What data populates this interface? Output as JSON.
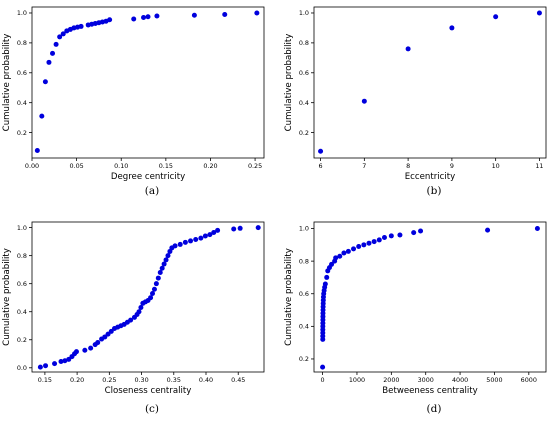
{
  "point_color": "#0000dd",
  "chart_data": [
    {
      "type": "scatter",
      "caption": "(a)",
      "xlabel": "Degree centricity",
      "ylabel": "Cumulative probability",
      "xlim": [
        0,
        0.26
      ],
      "ylim": [
        0.03,
        1.04
      ],
      "xticks": [
        0.0,
        0.05,
        0.1,
        0.15,
        0.2,
        0.25
      ],
      "xtick_labels": [
        "0.00",
        "0.05",
        "0.10",
        "0.15",
        "0.20",
        "0.25"
      ],
      "yticks": [
        0.2,
        0.4,
        0.6,
        0.8,
        1.0
      ],
      "ytick_labels": [
        "0.2",
        "0.4",
        "0.6",
        "0.8",
        "1.0"
      ],
      "points": [
        [
          0.006,
          0.08
        ],
        [
          0.011,
          0.31
        ],
        [
          0.015,
          0.54
        ],
        [
          0.019,
          0.67
        ],
        [
          0.023,
          0.73
        ],
        [
          0.027,
          0.79
        ],
        [
          0.031,
          0.84
        ],
        [
          0.035,
          0.86
        ],
        [
          0.039,
          0.88
        ],
        [
          0.043,
          0.89
        ],
        [
          0.047,
          0.9
        ],
        [
          0.051,
          0.905
        ],
        [
          0.055,
          0.91
        ],
        [
          0.063,
          0.92
        ],
        [
          0.067,
          0.925
        ],
        [
          0.071,
          0.93
        ],
        [
          0.075,
          0.935
        ],
        [
          0.079,
          0.94
        ],
        [
          0.083,
          0.945
        ],
        [
          0.087,
          0.955
        ],
        [
          0.114,
          0.96
        ],
        [
          0.125,
          0.97
        ],
        [
          0.13,
          0.975
        ],
        [
          0.14,
          0.98
        ],
        [
          0.182,
          0.985
        ],
        [
          0.216,
          0.99
        ],
        [
          0.252,
          1.0
        ]
      ]
    },
    {
      "type": "scatter",
      "caption": "(b)",
      "xlabel": "Eccentricity",
      "ylabel": "Cumulative probability",
      "xlim": [
        5.85,
        11.15
      ],
      "ylim": [
        0.03,
        1.04
      ],
      "xticks": [
        6,
        7,
        8,
        9,
        10,
        11
      ],
      "xtick_labels": [
        "6",
        "7",
        "8",
        "9",
        "10",
        "11"
      ],
      "yticks": [
        0.2,
        0.4,
        0.6,
        0.8,
        1.0
      ],
      "ytick_labels": [
        "0.2",
        "0.4",
        "0.6",
        "0.8",
        "1.0"
      ],
      "points": [
        [
          6,
          0.075
        ],
        [
          7,
          0.41
        ],
        [
          8,
          0.76
        ],
        [
          9,
          0.9
        ],
        [
          10,
          0.975
        ],
        [
          11,
          1.0
        ]
      ]
    },
    {
      "type": "scatter",
      "caption": "(c)",
      "xlabel": "Closeness centrality",
      "ylabel": "Cumulative probability",
      "xlim": [
        0.13,
        0.49
      ],
      "ylim": [
        -0.03,
        1.04
      ],
      "xticks": [
        0.15,
        0.2,
        0.25,
        0.3,
        0.35,
        0.4,
        0.45
      ],
      "xtick_labels": [
        "0.15",
        "0.20",
        "0.25",
        "0.30",
        "0.35",
        "0.40",
        "0.45"
      ],
      "yticks": [
        0.0,
        0.2,
        0.4,
        0.6,
        0.8,
        1.0
      ],
      "ytick_labels": [
        "0.0",
        "0.2",
        "0.4",
        "0.6",
        "0.8",
        "1.0"
      ],
      "points": [
        [
          0.143,
          0.005
        ],
        [
          0.151,
          0.015
        ],
        [
          0.165,
          0.03
        ],
        [
          0.175,
          0.045
        ],
        [
          0.181,
          0.05
        ],
        [
          0.187,
          0.06
        ],
        [
          0.192,
          0.08
        ],
        [
          0.196,
          0.1
        ],
        [
          0.199,
          0.115
        ],
        [
          0.212,
          0.125
        ],
        [
          0.221,
          0.14
        ],
        [
          0.228,
          0.165
        ],
        [
          0.232,
          0.18
        ],
        [
          0.238,
          0.205
        ],
        [
          0.243,
          0.22
        ],
        [
          0.248,
          0.24
        ],
        [
          0.253,
          0.26
        ],
        [
          0.258,
          0.28
        ],
        [
          0.263,
          0.29
        ],
        [
          0.268,
          0.3
        ],
        [
          0.273,
          0.31
        ],
        [
          0.278,
          0.325
        ],
        [
          0.283,
          0.34
        ],
        [
          0.289,
          0.36
        ],
        [
          0.293,
          0.38
        ],
        [
          0.296,
          0.4
        ],
        [
          0.299,
          0.43
        ],
        [
          0.302,
          0.46
        ],
        [
          0.306,
          0.47
        ],
        [
          0.31,
          0.48
        ],
        [
          0.314,
          0.5
        ],
        [
          0.317,
          0.53
        ],
        [
          0.32,
          0.56
        ],
        [
          0.323,
          0.6
        ],
        [
          0.326,
          0.64
        ],
        [
          0.329,
          0.68
        ],
        [
          0.332,
          0.71
        ],
        [
          0.335,
          0.74
        ],
        [
          0.338,
          0.77
        ],
        [
          0.341,
          0.8
        ],
        [
          0.344,
          0.83
        ],
        [
          0.347,
          0.855
        ],
        [
          0.352,
          0.87
        ],
        [
          0.36,
          0.88
        ],
        [
          0.368,
          0.895
        ],
        [
          0.376,
          0.905
        ],
        [
          0.384,
          0.915
        ],
        [
          0.392,
          0.925
        ],
        [
          0.399,
          0.94
        ],
        [
          0.406,
          0.95
        ],
        [
          0.412,
          0.965
        ],
        [
          0.418,
          0.98
        ],
        [
          0.443,
          0.99
        ],
        [
          0.453,
          0.995
        ],
        [
          0.481,
          1.0
        ]
      ]
    },
    {
      "type": "scatter",
      "caption": "(d)",
      "xlabel": "Betweeness centrality",
      "ylabel": "Cumulative probability",
      "xlim": [
        -250,
        6500
      ],
      "ylim": [
        0.12,
        1.04
      ],
      "xticks": [
        0,
        1000,
        2000,
        3000,
        4000,
        5000,
        6000
      ],
      "xtick_labels": [
        "0",
        "1000",
        "2000",
        "3000",
        "4000",
        "5000",
        "6000"
      ],
      "yticks": [
        0.2,
        0.4,
        0.6,
        0.8,
        1.0
      ],
      "ytick_labels": [
        "0.2",
        "0.4",
        "0.6",
        "0.8",
        "1.0"
      ],
      "points": [
        [
          0,
          0.15
        ],
        [
          5,
          0.32
        ],
        [
          5,
          0.34
        ],
        [
          6,
          0.36
        ],
        [
          6,
          0.38
        ],
        [
          7,
          0.4
        ],
        [
          8,
          0.42
        ],
        [
          9,
          0.44
        ],
        [
          10,
          0.46
        ],
        [
          11,
          0.48
        ],
        [
          13,
          0.5
        ],
        [
          15,
          0.52
        ],
        [
          18,
          0.54
        ],
        [
          21,
          0.56
        ],
        [
          25,
          0.58
        ],
        [
          32,
          0.6
        ],
        [
          45,
          0.62
        ],
        [
          60,
          0.64
        ],
        [
          80,
          0.66
        ],
        [
          120,
          0.7
        ],
        [
          150,
          0.74
        ],
        [
          200,
          0.76
        ],
        [
          260,
          0.78
        ],
        [
          350,
          0.8
        ],
        [
          380,
          0.82
        ],
        [
          500,
          0.83
        ],
        [
          620,
          0.85
        ],
        [
          750,
          0.86
        ],
        [
          900,
          0.875
        ],
        [
          1050,
          0.89
        ],
        [
          1200,
          0.9
        ],
        [
          1350,
          0.91
        ],
        [
          1500,
          0.92
        ],
        [
          1650,
          0.93
        ],
        [
          1800,
          0.945
        ],
        [
          2000,
          0.955
        ],
        [
          2250,
          0.96
        ],
        [
          2650,
          0.975
        ],
        [
          2850,
          0.985
        ],
        [
          4800,
          0.99
        ],
        [
          6250,
          1.0
        ]
      ]
    }
  ]
}
